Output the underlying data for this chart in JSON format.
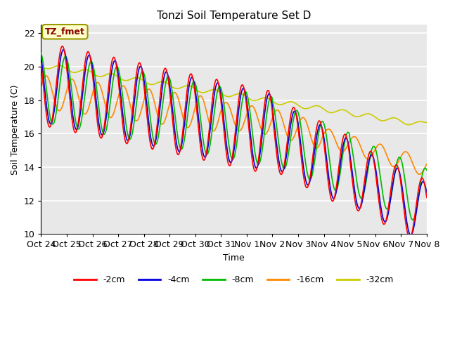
{
  "title": "Tonzi Soil Temperature Set D",
  "xlabel": "Time",
  "ylabel": "Soil Temperature (C)",
  "ylim": [
    10,
    22.5
  ],
  "bg_color": "#e8e8e8",
  "fig_color": "#ffffff",
  "annotation_text": "TZ_fmet",
  "annotation_bg": "#ffffcc",
  "annotation_border": "#999900",
  "legend_labels": [
    "-2cm",
    "-4cm",
    "-8cm",
    "-16cm",
    "-32cm"
  ],
  "colors": [
    "#ff0000",
    "#0000dd",
    "#00bb00",
    "#ff8800",
    "#cccc00"
  ],
  "line_width": 1.2,
  "xtick_labels": [
    "Oct 24",
    "Oct 25",
    "Oct 26",
    "Oct 27",
    "Oct 28",
    "Oct 29",
    "Oct 30",
    "Oct 31",
    "Nov 1",
    "Nov 2",
    "Nov 3",
    "Nov 4",
    "Nov 5",
    "Nov 6",
    "Nov 7",
    "Nov 8"
  ]
}
